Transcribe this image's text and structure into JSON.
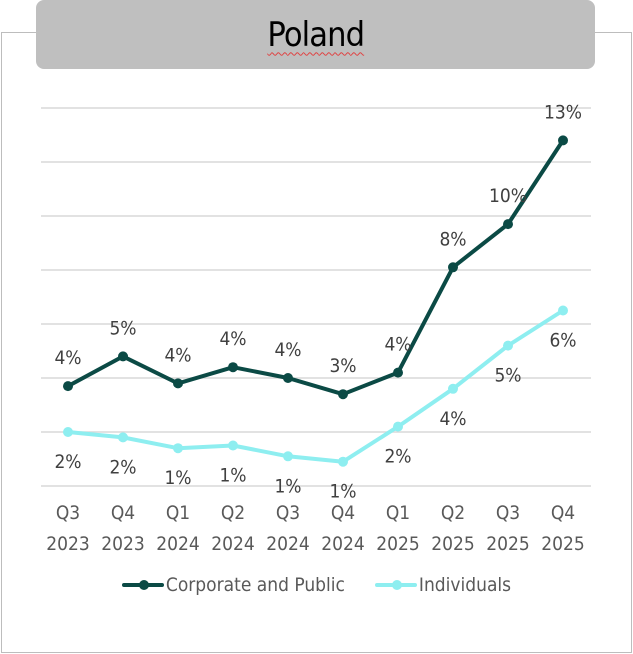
{
  "chart_data": {
    "type": "line",
    "title": "Poland",
    "categories": [
      [
        "Q3",
        "2023"
      ],
      [
        "Q4",
        "2023"
      ],
      [
        "Q1",
        "2024"
      ],
      [
        "Q2",
        "2024"
      ],
      [
        "Q3",
        "2024"
      ],
      [
        "Q4",
        "2024"
      ],
      [
        "Q1",
        "2025"
      ],
      [
        "Q2",
        "2025"
      ],
      [
        "Q3",
        "2025"
      ],
      [
        "Q4",
        "2025"
      ]
    ],
    "ylim": [
      0,
      14
    ],
    "y_gridlines": [
      0,
      2,
      4,
      6,
      8,
      10,
      12,
      14
    ],
    "y_axis_labels_shown": false,
    "grid": true,
    "legend_position": "bottom",
    "series": [
      {
        "name": "Corporate and Public",
        "color": "#0b4a45",
        "values": [
          3.7,
          4.8,
          3.8,
          4.4,
          4.0,
          3.4,
          4.2,
          8.1,
          9.7,
          12.8
        ],
        "labels": [
          "4%",
          "5%",
          "4%",
          "4%",
          "4%",
          "3%",
          "4%",
          "8%",
          "10%",
          "13%"
        ],
        "label_position": "above"
      },
      {
        "name": "Individuals",
        "color": "#8eeef0",
        "values": [
          2.0,
          1.8,
          1.4,
          1.5,
          1.1,
          0.9,
          2.2,
          3.6,
          5.2,
          6.5
        ],
        "labels": [
          "2%",
          "2%",
          "1%",
          "1%",
          "1%",
          "1%",
          "2%",
          "4%",
          "5%",
          "6%"
        ],
        "label_position": "below"
      }
    ]
  }
}
